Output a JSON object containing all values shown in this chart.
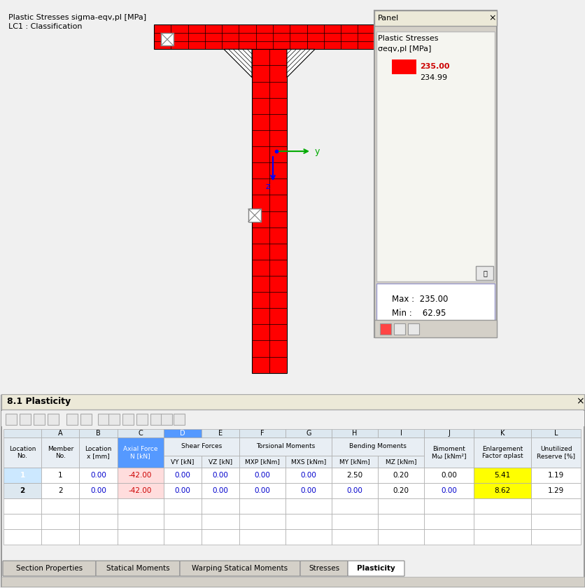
{
  "title_top_line1": "Plastic Stresses sigma-eqv,pl [MPa]",
  "title_top_line2": "LC1 : Classification",
  "panel_title": "Panel",
  "panel_subtitle1": "Plastic Stresses",
  "panel_subtitle2": "σeqv,pl [MPa]",
  "legend_value1": "235.00",
  "legend_value2": "234.99",
  "max_label": "Max :  235.00",
  "min_label": "Min :    62.95",
  "table_title": "8.1 Plasticity",
  "col_headers_row1": [
    "A",
    "B",
    "C",
    "D",
    "E",
    "F",
    "G",
    "H",
    "I",
    "J",
    "K",
    "L"
  ],
  "col_headers_row2": [
    "Location\nNo.",
    "Member\nNo.",
    "Location\nx [mm]",
    "Axial Force\nN [kN]",
    "Shear Forces\nVY [kN]",
    "Shear Forces\nVZ [kN]",
    "Torsional Moments\nMxp [kNm]",
    "Torsional Moments\nMxS [kNm]",
    "Bending Moments\nMY [kNm]",
    "Bending Moments\nMZ [kNm]",
    "Bimoment\nMω [kNm²]",
    "Enlargement\nFactor αplast",
    "Unutilized\nReserve [%]"
  ],
  "row1": [
    "1",
    "1",
    "0.00",
    "-42.00",
    "0.00",
    "0.00",
    "0.00",
    "0.00",
    "2.50",
    "0.20",
    "0.00",
    "5.41",
    "1.19"
  ],
  "row2": [
    "2",
    "2",
    "0.00",
    "-42.00",
    "0.00",
    "0.00",
    "0.00",
    "0.00",
    "0.00",
    "0.20",
    "0.00",
    "8.62",
    "1.29"
  ],
  "tab_labels": [
    "Section Properties",
    "Statical Moments",
    "Warping Statical Moments",
    "Stresses",
    "Plasticity"
  ],
  "active_tab": "Plasticity",
  "bg_color": "#f0f0f0",
  "white": "#ffffff",
  "red_color": "#ff0000",
  "blue_color": "#0000ff",
  "green_color": "#00aa00",
  "header_bg": "#e8e8e8",
  "selected_row_bg": "#cce8ff",
  "selected_col_bg": "#5599ff",
  "yellow_bg": "#ffff00",
  "panel_bg": "#f5f5f0",
  "border_color": "#aaaaaa",
  "dark_border": "#666666"
}
